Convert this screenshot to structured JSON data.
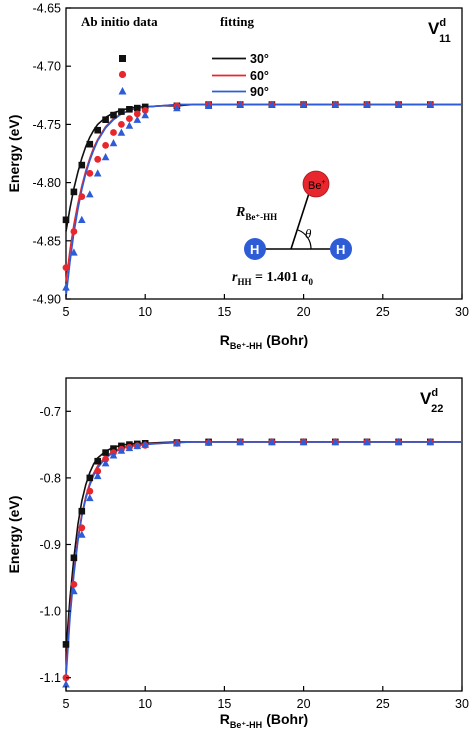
{
  "chart_data": [
    {
      "type": "scatter",
      "panel_label": "V",
      "panel_label_sup": "d",
      "panel_label_sub": "11",
      "xlabel": "R",
      "xlabel_sub": "Be⁺-HH",
      "xlabel_unit": "(Bohr)",
      "ylabel": "Energy (eV)",
      "xlim": [
        5,
        30
      ],
      "ylim": [
        -4.9,
        -4.65
      ],
      "xticks": [
        5,
        10,
        15,
        20,
        25,
        30
      ],
      "yticks": [
        -4.9,
        -4.85,
        -4.8,
        -4.75,
        -4.7,
        -4.65
      ],
      "ytick_labels": [
        "-4.90",
        "-4.85",
        "-4.80",
        "-4.75",
        "-4.70",
        "-4.65"
      ],
      "legend": {
        "header_data": "Ab initio data",
        "header_fit": "fitting",
        "entries": [
          "30°",
          "60°",
          "90°"
        ]
      },
      "inset": {
        "atom_top": "Be",
        "atom_top_sup": "+",
        "atom_left": "H",
        "atom_right": "H",
        "distance_label": "R",
        "distance_sub": "Be⁺-HH",
        "angle_label": "θ",
        "bond_label": "r",
        "bond_sub": "HH",
        "bond_value": " = 1.401 ",
        "bond_unit": "a",
        "bond_unit_sub": "0"
      },
      "colors": {
        "30°": "#111111",
        "60°": "#e8262d",
        "90°": "#2e5cd6"
      },
      "series": [
        {
          "name": "30°",
          "marker": "square",
          "x": [
            5.0,
            5.5,
            6.0,
            6.5,
            7.0,
            7.5,
            8.0,
            8.5,
            9.0,
            9.5,
            10.0,
            12.0,
            14.0,
            16.0,
            18.0,
            20.0,
            22.0,
            24.0,
            26.0,
            28.0
          ],
          "y": [
            -4.832,
            -4.808,
            -4.785,
            -4.767,
            -4.755,
            -4.746,
            -4.742,
            -4.739,
            -4.737,
            -4.736,
            -4.735,
            -4.734,
            -4.733,
            -4.733,
            -4.733,
            -4.733,
            -4.733,
            -4.733,
            -4.733,
            -4.733
          ],
          "fit_x": [
            5.0,
            5.25,
            5.5,
            5.75,
            6.0,
            6.25,
            6.5,
            6.75,
            7.0,
            7.5,
            8.0,
            8.5,
            9.0,
            9.5,
            10.0,
            11.0,
            12.0,
            13.0,
            14.0,
            15.0,
            16.0,
            17.0,
            18.0,
            20.0,
            22.0,
            24.0,
            26.0,
            28.0,
            30.0
          ],
          "fit_y": [
            -4.842,
            -4.822,
            -4.805,
            -4.791,
            -4.779,
            -4.769,
            -4.761,
            -4.755,
            -4.75,
            -4.744,
            -4.74,
            -4.738,
            -4.736,
            -4.735,
            -4.735,
            -4.734,
            -4.734,
            -4.733,
            -4.733,
            -4.733,
            -4.733,
            -4.733,
            -4.733,
            -4.733,
            -4.733,
            -4.733,
            -4.733,
            -4.733,
            -4.733
          ]
        },
        {
          "name": "60°",
          "marker": "circle",
          "x": [
            5.0,
            5.5,
            6.0,
            6.5,
            7.0,
            7.5,
            8.0,
            8.5,
            9.0,
            9.5,
            10.0,
            12.0,
            14.0,
            16.0,
            18.0,
            20.0,
            22.0,
            24.0,
            26.0,
            28.0
          ],
          "y": [
            -4.873,
            -4.842,
            -4.812,
            -4.792,
            -4.78,
            -4.768,
            -4.757,
            -4.75,
            -4.745,
            -4.741,
            -4.738,
            -4.734,
            -4.733,
            -4.733,
            -4.733,
            -4.733,
            -4.733,
            -4.733,
            -4.733,
            -4.733
          ],
          "fit_x": [
            5.0,
            5.25,
            5.5,
            5.75,
            6.0,
            6.25,
            6.5,
            6.75,
            7.0,
            7.5,
            8.0,
            8.5,
            9.0,
            9.5,
            10.0,
            11.0,
            12.0,
            13.0,
            14.0,
            15.0,
            16.0,
            17.0,
            18.0,
            20.0,
            22.0,
            24.0,
            26.0,
            28.0,
            30.0
          ],
          "fit_y": [
            -4.885,
            -4.858,
            -4.836,
            -4.818,
            -4.803,
            -4.79,
            -4.779,
            -4.77,
            -4.763,
            -4.752,
            -4.745,
            -4.741,
            -4.738,
            -4.736,
            -4.735,
            -4.734,
            -4.733,
            -4.733,
            -4.733,
            -4.733,
            -4.733,
            -4.733,
            -4.733,
            -4.733,
            -4.733,
            -4.733,
            -4.733,
            -4.733,
            -4.733
          ]
        },
        {
          "name": "90°",
          "marker": "triangle",
          "x": [
            5.0,
            5.5,
            6.0,
            6.5,
            7.0,
            7.5,
            8.0,
            8.5,
            9.0,
            9.5,
            10.0,
            12.0,
            14.0,
            16.0,
            18.0,
            20.0,
            22.0,
            24.0,
            26.0,
            28.0
          ],
          "y": [
            -4.89,
            -4.86,
            -4.832,
            -4.81,
            -4.792,
            -4.778,
            -4.766,
            -4.757,
            -4.751,
            -4.746,
            -4.742,
            -4.736,
            -4.734,
            -4.733,
            -4.733,
            -4.733,
            -4.733,
            -4.733,
            -4.733,
            -4.733
          ],
          "fit_x": [
            5.0,
            5.25,
            5.5,
            5.75,
            6.0,
            6.25,
            6.5,
            6.75,
            7.0,
            7.5,
            8.0,
            8.5,
            9.0,
            9.5,
            10.0,
            11.0,
            12.0,
            13.0,
            14.0,
            15.0,
            16.0,
            17.0,
            18.0,
            20.0,
            22.0,
            24.0,
            26.0,
            28.0,
            30.0
          ],
          "fit_y": [
            -4.898,
            -4.868,
            -4.843,
            -4.823,
            -4.806,
            -4.792,
            -4.781,
            -4.772,
            -4.764,
            -4.753,
            -4.746,
            -4.741,
            -4.738,
            -4.736,
            -4.735,
            -4.734,
            -4.733,
            -4.733,
            -4.733,
            -4.733,
            -4.733,
            -4.733,
            -4.733,
            -4.733,
            -4.733,
            -4.733,
            -4.733,
            -4.733,
            -4.733
          ]
        }
      ]
    },
    {
      "type": "scatter",
      "panel_label": "V",
      "panel_label_sup": "d",
      "panel_label_sub": "22",
      "xlabel": "R",
      "xlabel_sub": "Be⁺-HH",
      "xlabel_unit": "(Bohr)",
      "ylabel": "Energy (eV)",
      "xlim": [
        5,
        30
      ],
      "ylim": [
        -1.12,
        -0.65
      ],
      "xticks": [
        5,
        10,
        15,
        20,
        25,
        30
      ],
      "yticks": [
        -1.1,
        -1.0,
        -0.9,
        -0.8,
        -0.7
      ],
      "ytick_labels": [
        "-1.1",
        "-1.0",
        "-0.9",
        "-0.8",
        "-0.7"
      ],
      "colors": {
        "30°": "#111111",
        "60°": "#e8262d",
        "90°": "#2e5cd6"
      },
      "series": [
        {
          "name": "30°",
          "marker": "square",
          "x": [
            5.0,
            5.5,
            6.0,
            6.5,
            7.0,
            7.5,
            8.0,
            8.5,
            9.0,
            9.5,
            10.0,
            12.0,
            14.0,
            16.0,
            18.0,
            20.0,
            22.0,
            24.0,
            26.0,
            28.0
          ],
          "y": [
            -1.05,
            -0.92,
            -0.85,
            -0.8,
            -0.775,
            -0.762,
            -0.756,
            -0.752,
            -0.75,
            -0.749,
            -0.748,
            -0.747,
            -0.746,
            -0.746,
            -0.746,
            -0.746,
            -0.746,
            -0.746,
            -0.746,
            -0.746
          ],
          "fit_x": [
            5.0,
            5.25,
            5.5,
            5.75,
            6.0,
            6.25,
            6.5,
            6.75,
            7.0,
            7.5,
            8.0,
            8.5,
            9.0,
            9.5,
            10.0,
            11.0,
            12.0,
            13.0,
            14.0,
            15.0,
            16.0,
            17.0,
            18.0,
            20.0,
            22.0,
            24.0,
            26.0,
            28.0,
            30.0
          ],
          "fit_y": [
            -1.06,
            -0.98,
            -0.92,
            -0.87,
            -0.835,
            -0.81,
            -0.792,
            -0.779,
            -0.77,
            -0.76,
            -0.754,
            -0.751,
            -0.749,
            -0.748,
            -0.748,
            -0.747,
            -0.746,
            -0.746,
            -0.746,
            -0.746,
            -0.746,
            -0.746,
            -0.746,
            -0.746,
            -0.746,
            -0.746,
            -0.746,
            -0.746,
            -0.746
          ]
        },
        {
          "name": "60°",
          "marker": "circle",
          "x": [
            5.0,
            5.5,
            6.0,
            6.5,
            7.0,
            7.5,
            8.0,
            8.5,
            9.0,
            9.5,
            10.0,
            12.0,
            14.0,
            16.0,
            18.0,
            20.0,
            22.0,
            24.0,
            26.0,
            28.0
          ],
          "y": [
            -1.1,
            -0.96,
            -0.875,
            -0.82,
            -0.79,
            -0.772,
            -0.762,
            -0.757,
            -0.754,
            -0.752,
            -0.751,
            -0.748,
            -0.747,
            -0.746,
            -0.746,
            -0.746,
            -0.746,
            -0.746,
            -0.746,
            -0.746
          ],
          "fit_x": [
            5.0,
            5.25,
            5.5,
            5.75,
            6.0,
            6.25,
            6.5,
            6.75,
            7.0,
            7.5,
            8.0,
            8.5,
            9.0,
            9.5,
            10.0,
            11.0,
            12.0,
            13.0,
            14.0,
            15.0,
            16.0,
            17.0,
            18.0,
            20.0,
            22.0,
            24.0,
            26.0,
            28.0,
            30.0
          ],
          "fit_y": [
            -1.09,
            -1.0,
            -0.94,
            -0.89,
            -0.855,
            -0.828,
            -0.808,
            -0.793,
            -0.782,
            -0.768,
            -0.76,
            -0.755,
            -0.752,
            -0.75,
            -0.749,
            -0.748,
            -0.747,
            -0.746,
            -0.746,
            -0.746,
            -0.746,
            -0.746,
            -0.746,
            -0.746,
            -0.746,
            -0.746,
            -0.746,
            -0.746,
            -0.746
          ]
        },
        {
          "name": "90°",
          "marker": "triangle",
          "x": [
            5.0,
            5.5,
            6.0,
            6.5,
            7.0,
            7.5,
            8.0,
            8.5,
            9.0,
            9.5,
            10.0,
            12.0,
            14.0,
            16.0,
            18.0,
            20.0,
            22.0,
            24.0,
            26.0,
            28.0
          ],
          "y": [
            -1.11,
            -0.97,
            -0.885,
            -0.83,
            -0.797,
            -0.778,
            -0.766,
            -0.759,
            -0.755,
            -0.752,
            -0.75,
            -0.748,
            -0.747,
            -0.746,
            -0.746,
            -0.746,
            -0.746,
            -0.746,
            -0.746,
            -0.746
          ],
          "fit_x": [
            5.0,
            5.25,
            5.5,
            5.75,
            6.0,
            6.25,
            6.5,
            6.75,
            7.0,
            7.5,
            8.0,
            8.5,
            9.0,
            9.5,
            10.0,
            11.0,
            12.0,
            13.0,
            14.0,
            15.0,
            16.0,
            17.0,
            18.0,
            20.0,
            22.0,
            24.0,
            26.0,
            28.0,
            30.0
          ],
          "fit_y": [
            -1.1,
            -1.01,
            -0.945,
            -0.895,
            -0.858,
            -0.831,
            -0.811,
            -0.796,
            -0.785,
            -0.77,
            -0.762,
            -0.756,
            -0.753,
            -0.751,
            -0.75,
            -0.748,
            -0.747,
            -0.746,
            -0.746,
            -0.746,
            -0.746,
            -0.746,
            -0.746,
            -0.746,
            -0.746,
            -0.746,
            -0.746,
            -0.746,
            -0.746
          ]
        }
      ]
    }
  ]
}
